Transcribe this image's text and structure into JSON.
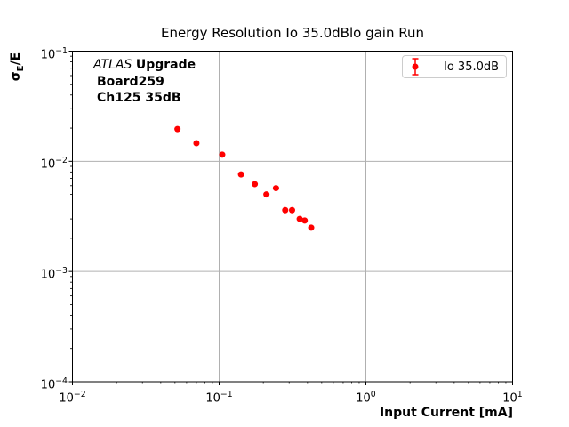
{
  "chart_data": {
    "type": "scatter",
    "title": "Energy Resolution Io 35.0dBlo gain Run",
    "xlabel": "Input Current [mA]",
    "ylabel": "σE/E",
    "xscale": "log",
    "yscale": "log",
    "xlim": [
      0.01,
      10
    ],
    "ylim": [
      0.0001,
      0.1
    ],
    "xlog_range": [
      -2,
      1
    ],
    "ylog_range": [
      -4,
      -1
    ],
    "x_tick_exponents": [
      -2,
      -1,
      0,
      1
    ],
    "y_tick_exponents": [
      -4,
      -3,
      -2,
      -1
    ],
    "grid": true,
    "legend": {
      "label": "Io 35.0dB",
      "position": "upper right"
    },
    "colors": {
      "series": "#ff0000",
      "grid": "#b0b0b0",
      "axis": "#000000",
      "legend_border": "#cccccc"
    },
    "series": [
      {
        "name": "Io 35.0dB",
        "marker": "circle-errorbar",
        "color": "#ff0000",
        "points": [
          [
            0.052,
            0.0196
          ],
          [
            0.07,
            0.0146
          ],
          [
            0.105,
            0.0115
          ],
          [
            0.141,
            0.0076
          ],
          [
            0.175,
            0.0062
          ],
          [
            0.21,
            0.005
          ],
          [
            0.244,
            0.0057
          ],
          [
            0.282,
            0.0036
          ],
          [
            0.314,
            0.0036
          ],
          [
            0.354,
            0.003
          ],
          [
            0.383,
            0.0029
          ],
          [
            0.424,
            0.0025
          ]
        ]
      }
    ]
  },
  "labels": {
    "ylabel_sigma": "σ",
    "ylabel_sub": "E",
    "ylabel_rest": "/E"
  },
  "annotation": {
    "line1_italic": "ATLAS",
    "line1_bold": "Upgrade",
    "line2": "Board259",
    "line3": "Ch125 35dB"
  }
}
